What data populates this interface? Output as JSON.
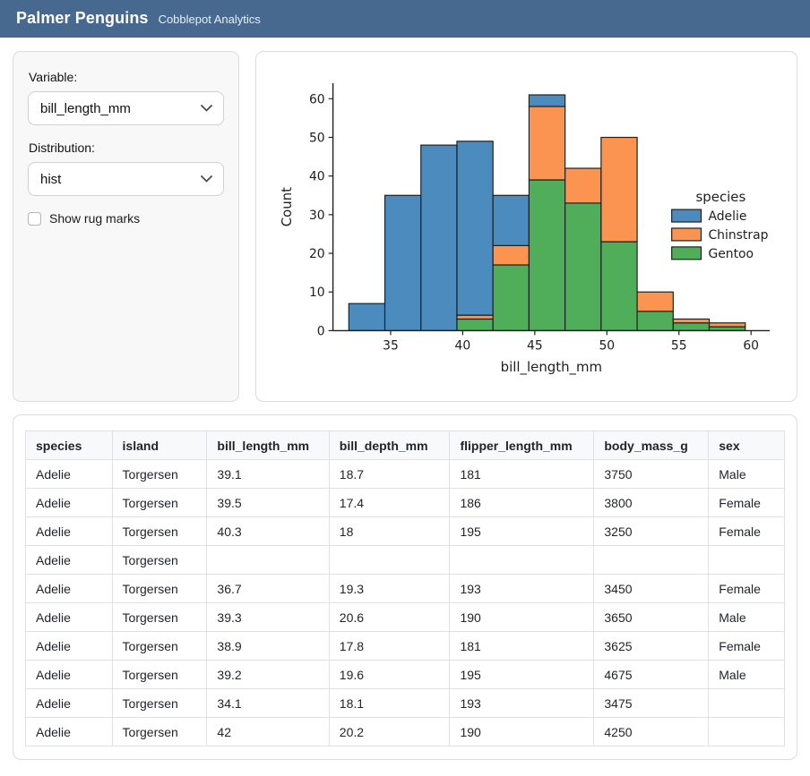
{
  "header": {
    "title": "Palmer Penguins",
    "subtitle": "Cobblepot Analytics",
    "navbar_color": "#48698f"
  },
  "sidebar": {
    "variable_label": "Variable:",
    "variable_value": "bill_length_mm",
    "distribution_label": "Distribution:",
    "distribution_value": "hist",
    "rug_checkbox_label": "Show rug marks",
    "rug_checked": false
  },
  "chart_data": {
    "type": "bar",
    "subtype": "stacked_histogram",
    "title": "",
    "xlabel": "bill_length_mm",
    "ylabel": "Count",
    "bin_edges": [
      32.1,
      34.6,
      37.1,
      39.6,
      42.1,
      44.6,
      47.1,
      49.6,
      52.1,
      54.6,
      57.1,
      59.6
    ],
    "series": [
      {
        "name": "Gentoo",
        "color": "#50ae5b",
        "values": [
          0,
          0,
          0,
          3,
          17,
          39,
          33,
          23,
          5,
          2,
          1
        ]
      },
      {
        "name": "Chinstrap",
        "color": "#fb9351",
        "values": [
          0,
          0,
          0,
          1,
          5,
          19,
          9,
          27,
          5,
          1,
          1
        ]
      },
      {
        "name": "Adelie",
        "color": "#4c8bbe",
        "values": [
          7,
          35,
          48,
          45,
          13,
          3,
          0,
          0,
          0,
          0,
          0
        ]
      }
    ],
    "stack_order": "bottom-to-top",
    "bin_totals": [
      7,
      35,
      48,
      49,
      35,
      61,
      42,
      50,
      10,
      3,
      2
    ],
    "xticks": [
      35,
      40,
      45,
      50,
      55,
      60
    ],
    "yticks": [
      0,
      10,
      20,
      30,
      40,
      50,
      60
    ],
    "xlim": [
      31.0,
      61.3
    ],
    "ylim": [
      0,
      64.05
    ],
    "grid": false,
    "bar_edge_color": "#1f1f1f",
    "legend": {
      "title": "species",
      "position": "right",
      "entries": [
        {
          "label": "Adelie",
          "color": "#4c8bbe"
        },
        {
          "label": "Chinstrap",
          "color": "#fb9351"
        },
        {
          "label": "Gentoo",
          "color": "#50ae5b"
        }
      ]
    }
  },
  "table": {
    "columns": [
      "species",
      "island",
      "bill_length_mm",
      "bill_depth_mm",
      "flipper_length_mm",
      "body_mass_g",
      "sex"
    ],
    "rows": [
      [
        "Adelie",
        "Torgersen",
        "39.1",
        "18.7",
        "181",
        "3750",
        "Male"
      ],
      [
        "Adelie",
        "Torgersen",
        "39.5",
        "17.4",
        "186",
        "3800",
        "Female"
      ],
      [
        "Adelie",
        "Torgersen",
        "40.3",
        "18",
        "195",
        "3250",
        "Female"
      ],
      [
        "Adelie",
        "Torgersen",
        "",
        "",
        "",
        "",
        ""
      ],
      [
        "Adelie",
        "Torgersen",
        "36.7",
        "19.3",
        "193",
        "3450",
        "Female"
      ],
      [
        "Adelie",
        "Torgersen",
        "39.3",
        "20.6",
        "190",
        "3650",
        "Male"
      ],
      [
        "Adelie",
        "Torgersen",
        "38.9",
        "17.8",
        "181",
        "3625",
        "Female"
      ],
      [
        "Adelie",
        "Torgersen",
        "39.2",
        "19.6",
        "195",
        "4675",
        "Male"
      ],
      [
        "Adelie",
        "Torgersen",
        "34.1",
        "18.1",
        "193",
        "3475",
        ""
      ],
      [
        "Adelie",
        "Torgersen",
        "42",
        "20.2",
        "190",
        "4250",
        ""
      ]
    ]
  }
}
